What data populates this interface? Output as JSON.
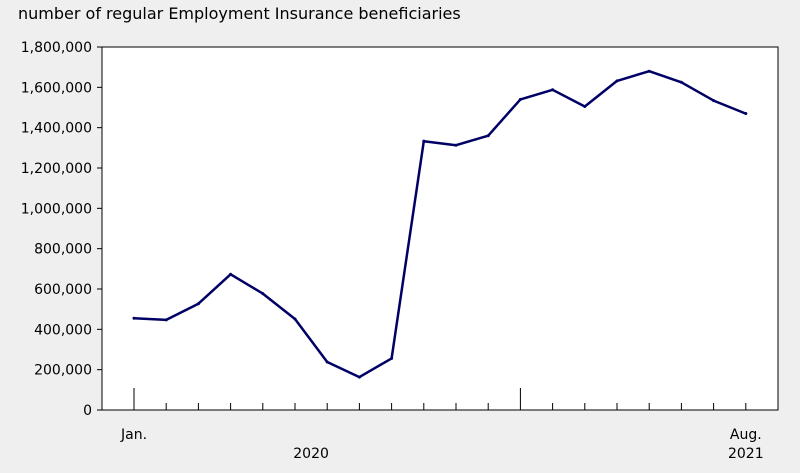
{
  "chart_data": {
    "type": "line",
    "title": "",
    "ylabel": "number of regular Employment Insurance beneficiaries",
    "xlabel": "",
    "ylim": [
      0,
      1800000
    ],
    "yticks": [
      0,
      200000,
      400000,
      600000,
      800000,
      1000000,
      1200000,
      1400000,
      1600000,
      1800000
    ],
    "ytick_labels": [
      "0",
      "200,000",
      "400,000",
      "600,000",
      "800,000",
      "1,000,000",
      "1,200,000",
      "1,400,000",
      "1,600,000",
      "1,800,000"
    ],
    "x": [
      "2020-01",
      "2020-02",
      "2020-03",
      "2020-04",
      "2020-05",
      "2020-06",
      "2020-07",
      "2020-08",
      "2020-09",
      "2020-10",
      "2020-11",
      "2020-12",
      "2021-01",
      "2021-02",
      "2021-03",
      "2021-04",
      "2021-05",
      "2021-06",
      "2021-07",
      "2021-08"
    ],
    "x_tick_labels": [
      {
        "index": 0,
        "label": "Jan."
      },
      {
        "index": 19,
        "label": "Aug."
      }
    ],
    "year_labels": [
      {
        "label": "2020",
        "start": 0,
        "end": 11
      },
      {
        "label": "2021",
        "start": 12,
        "end": 19
      }
    ],
    "series": [
      {
        "color": "#000066",
        "values": [
          455000,
          447000,
          527000,
          673000,
          577000,
          451000,
          238000,
          163000,
          256000,
          1333000,
          1313000,
          1360000,
          1540000,
          1588000,
          1505000,
          1632000,
          1680000,
          1625000,
          1534000,
          1470000
        ]
      }
    ],
    "grid": false,
    "legend": "none"
  }
}
